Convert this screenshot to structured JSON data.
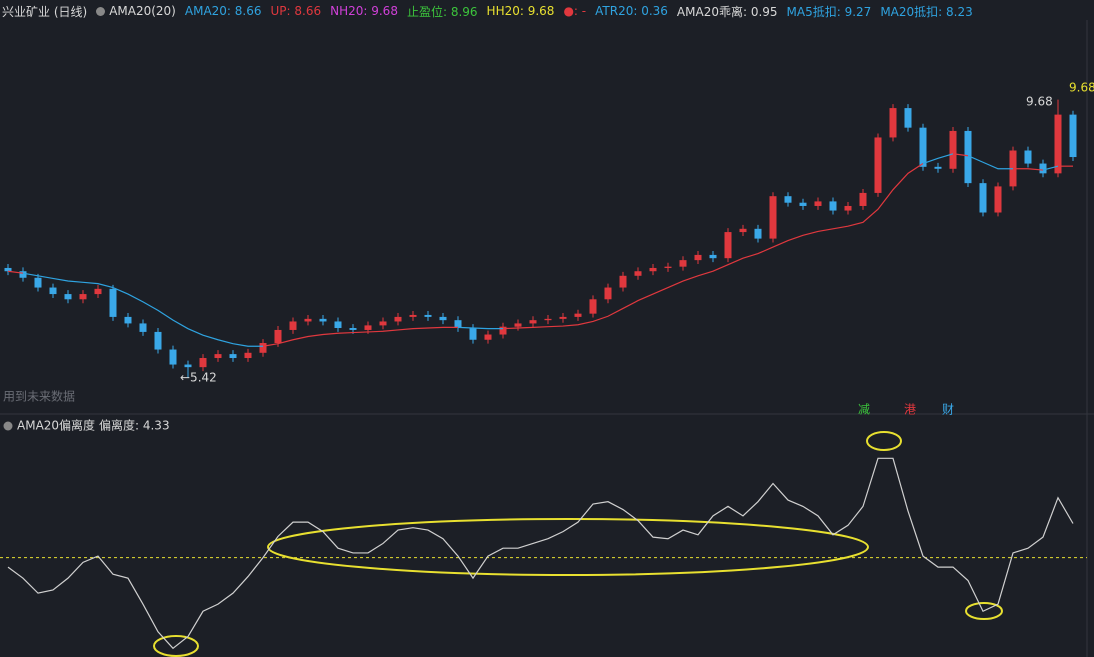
{
  "header": [
    {
      "text": "兴业矿业 (日线)",
      "color": "#d8d8d8"
    },
    {
      "text": "AMA20(20)",
      "color": "#d8d8d8"
    },
    {
      "text": "AMA20: 8.66",
      "color": "#2fa3e0"
    },
    {
      "text": "UP: 8.66",
      "color": "#e0383e"
    },
    {
      "text": "NH20: 9.68",
      "color": "#d040d8"
    },
    {
      "text": "止盈位: 8.96",
      "color": "#3cc43c"
    },
    {
      "text": "HH20: 9.68",
      "color": "#e8e030"
    },
    {
      "text": "●: -",
      "color": "#e0383e"
    },
    {
      "text": "ATR20: 0.36",
      "color": "#2fa3e0"
    },
    {
      "text": "AMA20乖离: 0.95",
      "color": "#d8d8d8"
    },
    {
      "text": "MA5抵扣: 9.27",
      "color": "#2fa3e0"
    },
    {
      "text": "MA20抵扣: 8.23",
      "color": "#2fa3e0"
    }
  ],
  "chart_data": [
    {
      "type": "candlestick",
      "open": [
        7.1,
        7.05,
        6.95,
        6.8,
        6.7,
        6.62,
        6.7,
        6.78,
        6.35,
        6.25,
        6.12,
        5.85,
        5.62,
        5.58,
        5.72,
        5.78,
        5.72,
        5.8,
        5.95,
        6.15,
        6.28,
        6.32,
        6.28,
        6.18,
        6.15,
        6.22,
        6.28,
        6.35,
        6.38,
        6.35,
        6.3,
        6.18,
        6.0,
        6.08,
        6.2,
        6.25,
        6.3,
        6.32,
        6.35,
        6.4,
        6.62,
        6.8,
        6.98,
        7.05,
        7.1,
        7.12,
        7.22,
        7.3,
        7.25,
        7.65,
        7.7,
        7.55,
        8.2,
        8.1,
        8.05,
        8.12,
        7.98,
        8.05,
        8.25,
        9.1,
        9.55,
        9.25,
        8.65,
        8.62,
        9.2,
        8.4,
        7.95,
        8.35,
        8.9,
        8.7,
        8.55,
        9.45
      ],
      "high": [
        7.16,
        7.11,
        7.01,
        6.86,
        6.76,
        6.76,
        6.84,
        6.84,
        6.41,
        6.31,
        6.18,
        5.91,
        5.68,
        5.78,
        5.84,
        5.84,
        5.86,
        6.01,
        6.21,
        6.34,
        6.38,
        6.38,
        6.34,
        6.24,
        6.28,
        6.34,
        6.41,
        6.44,
        6.44,
        6.41,
        6.36,
        6.24,
        6.14,
        6.26,
        6.31,
        6.36,
        6.38,
        6.41,
        6.46,
        6.68,
        6.86,
        7.04,
        7.11,
        7.16,
        7.18,
        7.28,
        7.36,
        7.36,
        7.71,
        7.76,
        7.76,
        8.26,
        8.26,
        8.16,
        8.18,
        8.18,
        8.11,
        8.31,
        9.16,
        9.61,
        9.61,
        9.31,
        8.71,
        9.26,
        9.26,
        8.46,
        8.41,
        8.96,
        8.96,
        8.76,
        9.68,
        9.51
      ],
      "low": [
        6.99,
        6.89,
        6.74,
        6.64,
        6.56,
        6.56,
        6.64,
        6.29,
        6.19,
        6.06,
        5.79,
        5.56,
        5.42,
        5.52,
        5.66,
        5.66,
        5.66,
        5.74,
        5.89,
        6.09,
        6.22,
        6.22,
        6.12,
        6.09,
        6.09,
        6.16,
        6.22,
        6.29,
        6.29,
        6.24,
        6.12,
        5.94,
        5.94,
        6.02,
        6.14,
        6.19,
        6.24,
        6.26,
        6.29,
        6.34,
        6.56,
        6.74,
        6.92,
        6.99,
        7.04,
        7.06,
        7.16,
        7.19,
        7.19,
        7.59,
        7.49,
        7.49,
        8.04,
        7.99,
        7.99,
        7.92,
        7.92,
        7.99,
        8.19,
        9.04,
        9.19,
        8.59,
        8.56,
        8.56,
        8.34,
        7.89,
        7.89,
        8.29,
        8.64,
        8.49,
        8.49,
        8.74
      ],
      "close": [
        7.05,
        6.95,
        6.8,
        6.7,
        6.62,
        6.7,
        6.78,
        6.35,
        6.25,
        6.12,
        5.85,
        5.62,
        5.58,
        5.72,
        5.78,
        5.72,
        5.8,
        5.95,
        6.15,
        6.28,
        6.32,
        6.28,
        6.18,
        6.15,
        6.22,
        6.28,
        6.35,
        6.38,
        6.35,
        6.3,
        6.18,
        6.0,
        6.08,
        6.2,
        6.25,
        6.3,
        6.32,
        6.35,
        6.4,
        6.62,
        6.8,
        6.98,
        7.05,
        7.1,
        7.12,
        7.22,
        7.3,
        7.25,
        7.65,
        7.7,
        7.55,
        8.2,
        8.1,
        8.05,
        8.12,
        7.98,
        8.05,
        8.25,
        9.1,
        9.55,
        9.25,
        8.65,
        8.62,
        9.2,
        8.4,
        7.95,
        8.35,
        8.9,
        8.7,
        8.55,
        9.45,
        8.8
      ],
      "up_color": "#e0383e",
      "down_color": "#3aa8e8",
      "ylim": [
        5.0,
        10.9
      ],
      "overlay": {
        "values": [
          7.05,
          7.02,
          6.98,
          6.94,
          6.9,
          6.88,
          6.86,
          6.8,
          6.7,
          6.58,
          6.45,
          6.3,
          6.17,
          6.07,
          6.0,
          5.94,
          5.9,
          5.9,
          5.94,
          6.0,
          6.05,
          6.08,
          6.1,
          6.11,
          6.12,
          6.13,
          6.15,
          6.17,
          6.18,
          6.19,
          6.19,
          6.18,
          6.17,
          6.17,
          6.18,
          6.19,
          6.2,
          6.21,
          6.23,
          6.28,
          6.36,
          6.48,
          6.6,
          6.7,
          6.8,
          6.9,
          6.98,
          7.05,
          7.15,
          7.25,
          7.32,
          7.42,
          7.52,
          7.6,
          7.66,
          7.7,
          7.74,
          7.8,
          8.0,
          8.3,
          8.55,
          8.7,
          8.78,
          8.85,
          8.82,
          8.72,
          8.62,
          8.62,
          8.62,
          8.6,
          8.66,
          8.66
        ],
        "color_above": "#2fa3e0",
        "color_below": "#e0383e"
      },
      "annotations": [
        {
          "text": "9.68",
          "color": "#d8d8d8"
        },
        {
          "text": "9.680",
          "color": "#e8e030"
        },
        {
          "text": "←5.42",
          "color": "#d8d8d8"
        }
      ],
      "note": "用到未来数据",
      "markers": [
        {
          "text": "减",
          "color": "#3cc43c"
        },
        {
          "text": "港",
          "color": "#e0383e"
        },
        {
          "text": "财",
          "color": "#3aa8e8"
        }
      ]
    },
    {
      "type": "line",
      "title": "AMA20偏离度",
      "subtitle": "偏离度: 4.33",
      "values": [
        -1.2,
        -2.6,
        -4.5,
        -4.1,
        -2.6,
        -0.6,
        0.2,
        -2.1,
        -2.6,
        -5.9,
        -9.4,
        -11.5,
        -10.0,
        -6.8,
        -5.9,
        -4.5,
        -2.4,
        0.0,
        2.7,
        4.5,
        4.5,
        3.3,
        1.2,
        0.6,
        0.6,
        1.8,
        3.5,
        3.8,
        3.5,
        2.4,
        0.2,
        -2.6,
        0.2,
        1.2,
        1.2,
        1.8,
        2.4,
        3.3,
        4.5,
        6.8,
        7.1,
        6.1,
        4.7,
        2.6,
        2.4,
        3.5,
        2.9,
        5.3,
        6.5,
        5.3,
        7.1,
        9.4,
        7.3,
        6.5,
        5.3,
        2.9,
        4.1,
        6.5,
        12.6,
        12.6,
        5.9,
        0.2,
        -1.2,
        -1.2,
        -2.9,
        -6.8,
        -5.9,
        0.6,
        1.2,
        2.6,
        7.6,
        4.33
      ],
      "color": "#d0d0d0",
      "ylim": [
        -12.6,
        15.3
      ],
      "ref_line": {
        "value": 0,
        "color": "#e8e030"
      }
    }
  ]
}
